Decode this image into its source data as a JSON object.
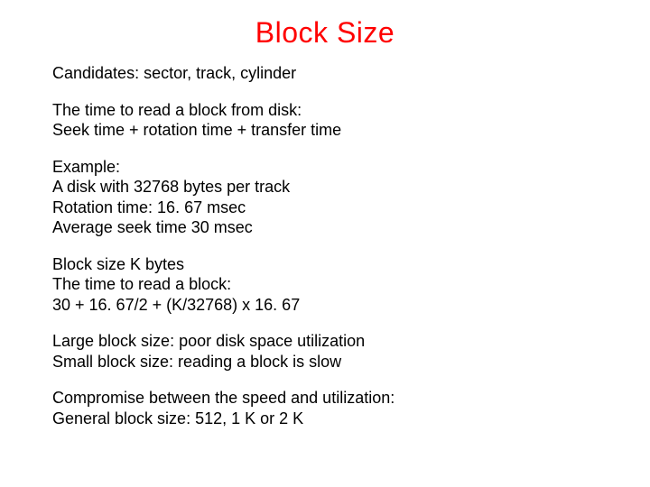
{
  "title": "Block Size",
  "title_color": "#ff0000",
  "body_color": "#000000",
  "background_color": "#ffffff",
  "title_fontsize": 32,
  "body_fontsize": 18,
  "paragraphs": {
    "p0": {
      "l0": "Candidates: sector, track, cylinder"
    },
    "p1": {
      "l0": "The time to read a block from disk:",
      "l1": "Seek time + rotation time + transfer time"
    },
    "p2": {
      "l0": "Example:",
      "l1": "A disk with 32768 bytes per track",
      "l2": "Rotation time: 16. 67 msec",
      "l3": "Average seek time 30 msec"
    },
    "p3": {
      "l0": "Block size K bytes",
      "l1": "The time to read a block:",
      "l2": "30 + 16. 67/2 + (K/32768) x 16. 67"
    },
    "p4": {
      "l0": "Large block size: poor disk space utilization",
      "l1": "Small block size: reading a block is slow"
    },
    "p5": {
      "l0": "Compromise between the speed and utilization:",
      "l1": "General block size: 512, 1 K or 2 K"
    }
  }
}
